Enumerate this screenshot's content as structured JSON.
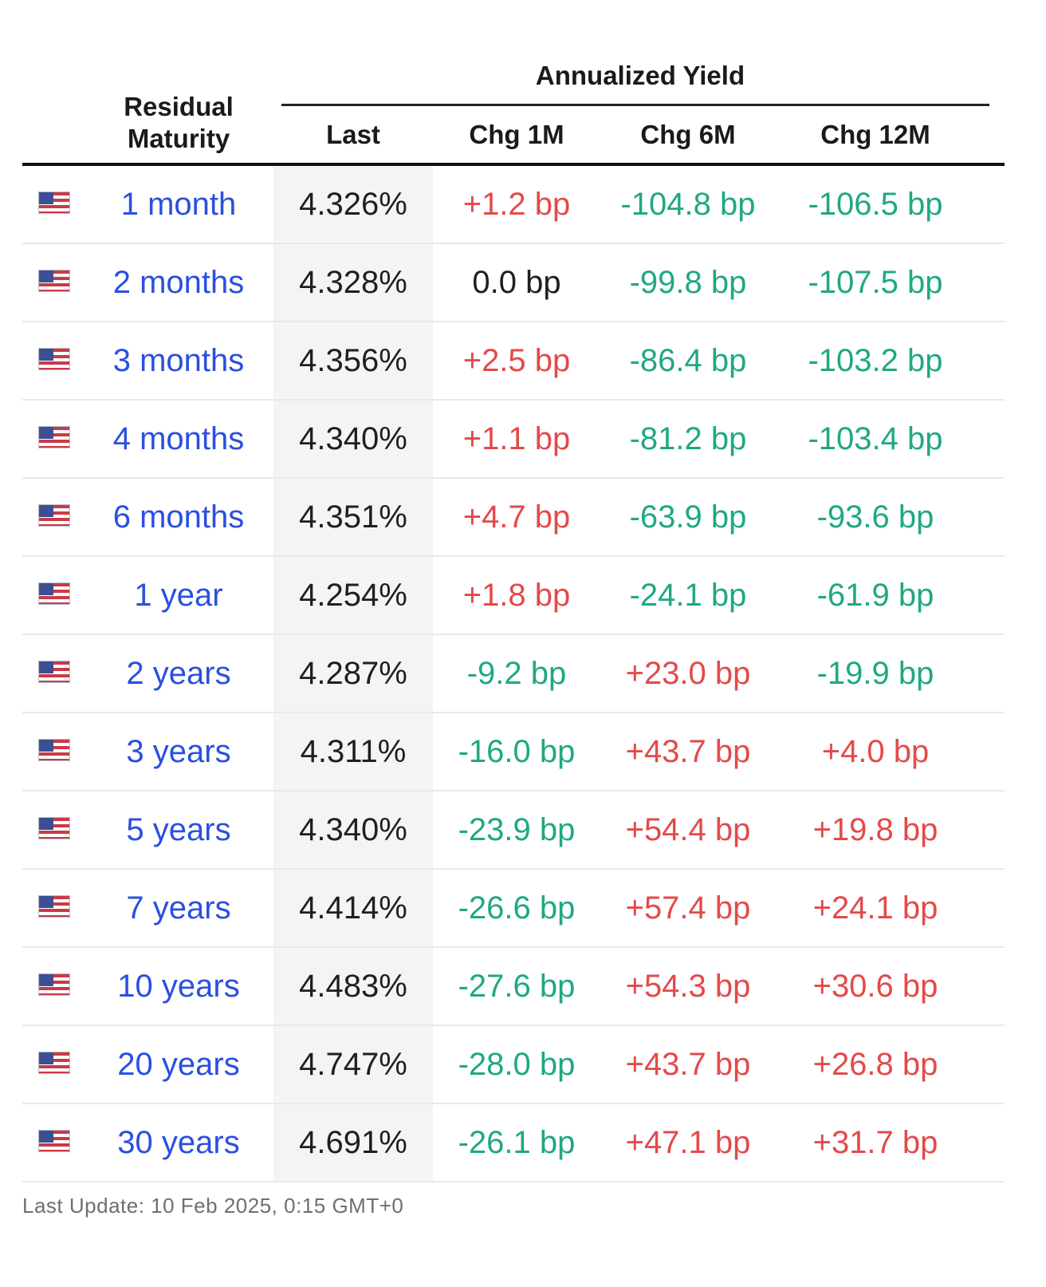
{
  "header": {
    "maturity_label": "Residual\nMaturity",
    "group_label": "Annualized Yield",
    "col_last": "Last",
    "col_chg_1m": "Chg 1M",
    "col_chg_6m": "Chg 6M",
    "col_chg_12m": "Chg 12M"
  },
  "colors": {
    "maturity_link": "#2a4fe0",
    "negative": "#1fa883",
    "positive": "#e34a4a",
    "neutral": "#1f1f1f",
    "flag_icon": "us-flag-icon"
  },
  "rows": [
    {
      "maturity": "1 month",
      "last": "4.326%",
      "chg_1m": "+1.2 bp",
      "chg_6m": "-104.8 bp",
      "chg_12m": "-106.5 bp"
    },
    {
      "maturity": "2 months",
      "last": "4.328%",
      "chg_1m": "0.0 bp",
      "chg_6m": "-99.8 bp",
      "chg_12m": "-107.5 bp"
    },
    {
      "maturity": "3 months",
      "last": "4.356%",
      "chg_1m": "+2.5 bp",
      "chg_6m": "-86.4 bp",
      "chg_12m": "-103.2 bp"
    },
    {
      "maturity": "4 months",
      "last": "4.340%",
      "chg_1m": "+1.1 bp",
      "chg_6m": "-81.2 bp",
      "chg_12m": "-103.4 bp"
    },
    {
      "maturity": "6 months",
      "last": "4.351%",
      "chg_1m": "+4.7 bp",
      "chg_6m": "-63.9 bp",
      "chg_12m": "-93.6 bp"
    },
    {
      "maturity": "1 year",
      "last": "4.254%",
      "chg_1m": "+1.8 bp",
      "chg_6m": "-24.1 bp",
      "chg_12m": "-61.9 bp"
    },
    {
      "maturity": "2 years",
      "last": "4.287%",
      "chg_1m": "-9.2 bp",
      "chg_6m": "+23.0 bp",
      "chg_12m": "-19.9 bp"
    },
    {
      "maturity": "3 years",
      "last": "4.311%",
      "chg_1m": "-16.0 bp",
      "chg_6m": "+43.7 bp",
      "chg_12m": "+4.0 bp"
    },
    {
      "maturity": "5 years",
      "last": "4.340%",
      "chg_1m": "-23.9 bp",
      "chg_6m": "+54.4 bp",
      "chg_12m": "+19.8 bp"
    },
    {
      "maturity": "7 years",
      "last": "4.414%",
      "chg_1m": "-26.6 bp",
      "chg_6m": "+57.4 bp",
      "chg_12m": "+24.1 bp"
    },
    {
      "maturity": "10 years",
      "last": "4.483%",
      "chg_1m": "-27.6 bp",
      "chg_6m": "+54.3 bp",
      "chg_12m": "+30.6 bp"
    },
    {
      "maturity": "20 years",
      "last": "4.747%",
      "chg_1m": "-28.0 bp",
      "chg_6m": "+43.7 bp",
      "chg_12m": "+26.8 bp"
    },
    {
      "maturity": "30 years",
      "last": "4.691%",
      "chg_1m": "-26.1 bp",
      "chg_6m": "+47.1 bp",
      "chg_12m": "+31.7 bp"
    }
  ],
  "footer": {
    "last_update": "Last Update: 10 Feb 2025, 0:15 GMT+0"
  }
}
